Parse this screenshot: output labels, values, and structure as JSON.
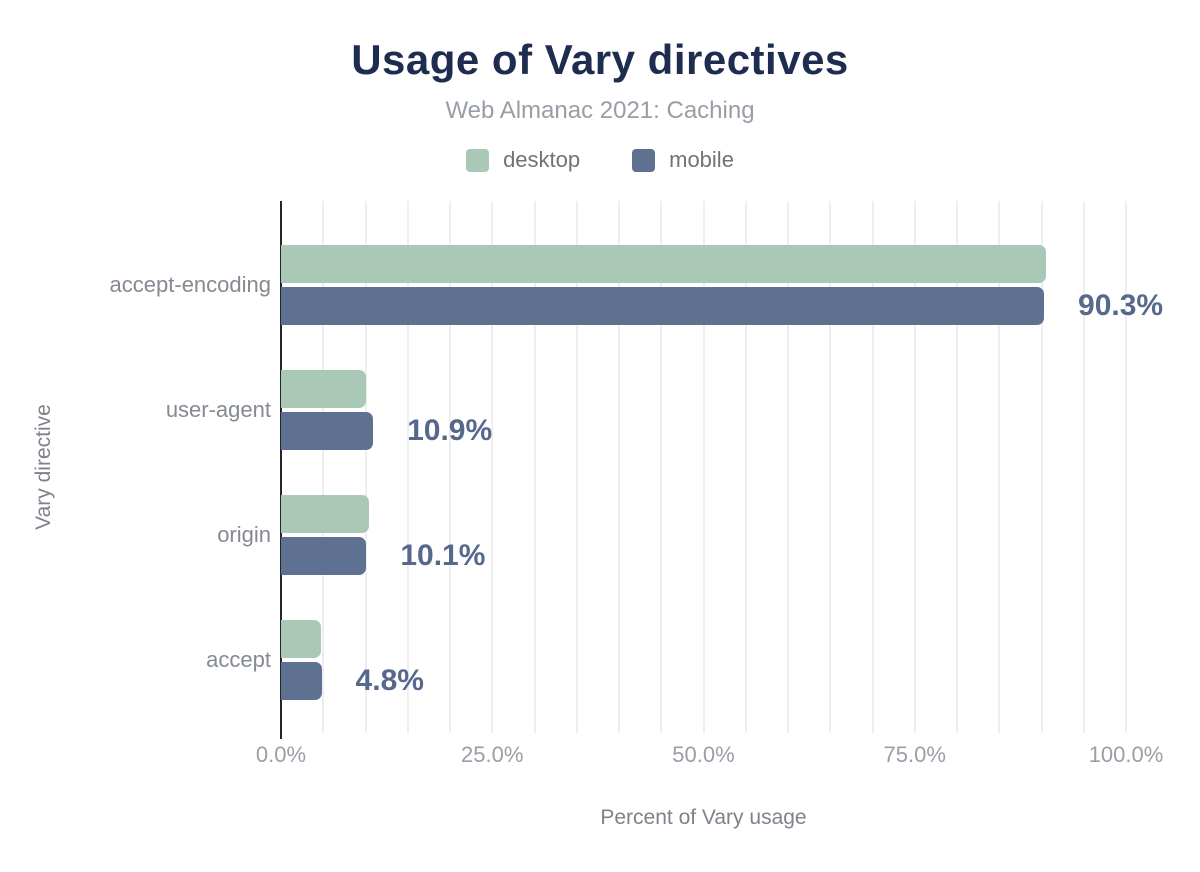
{
  "colors": {
    "title-color": "#1d2c4f",
    "subtitle-color": "#989ea6",
    "legend-text-color": "#6e737b",
    "category-color": "#858a92",
    "tick-color": "#9a9ea6",
    "axis-title-color": "#7d828b",
    "value-color": "#56698c",
    "axis-color": "#23262b",
    "grid-color": "#eeeef1",
    "desktop-series-color": "#a9c8b6",
    "mobile-series-color": "#5e7190"
  },
  "chart_data": {
    "type": "bar",
    "orientation": "horizontal",
    "title": "Usage of Vary directives",
    "subtitle": "Web Almanac 2021: Caching",
    "xlabel": "Percent of Vary usage",
    "ylabel": "Vary directive",
    "xlim": [
      0,
      100
    ],
    "grid": true,
    "grid_step": 5,
    "legend_position": "top",
    "categories": [
      "accept-encoding",
      "user-agent",
      "origin",
      "accept"
    ],
    "series": [
      {
        "name": "desktop",
        "color": "#a9c8b6",
        "values": [
          90.5,
          10.1,
          10.4,
          4.7
        ]
      },
      {
        "name": "mobile",
        "color": "#5e7190",
        "values": [
          90.3,
          10.9,
          10.1,
          4.8
        ]
      }
    ],
    "value_labels": {
      "labeled_series": "mobile",
      "labels": [
        "90.3%",
        "10.9%",
        "10.1%",
        "4.8%"
      ]
    },
    "x_ticks": [
      {
        "value": 0,
        "label": "0.0%"
      },
      {
        "value": 25,
        "label": "25.0%"
      },
      {
        "value": 50,
        "label": "50.0%"
      },
      {
        "value": 75,
        "label": "75.0%"
      },
      {
        "value": 100,
        "label": "100.0%"
      }
    ]
  }
}
